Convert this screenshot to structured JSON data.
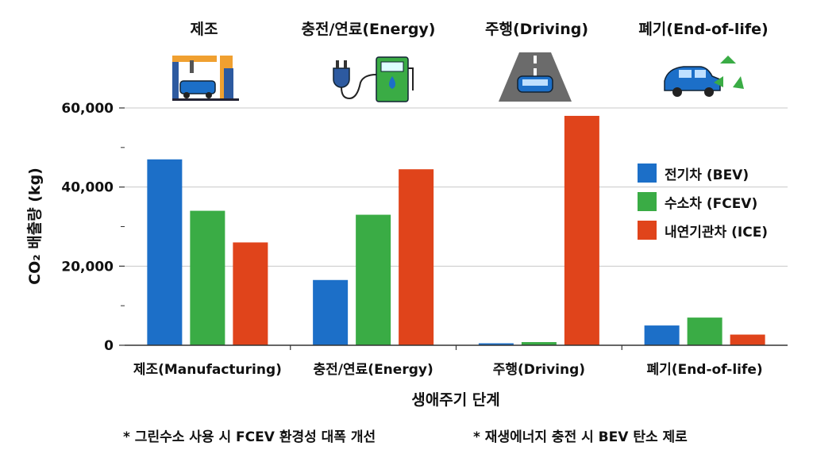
{
  "stage_titles": [
    "제조",
    "충전/연료(Energy)",
    "주행(Driving)",
    "폐기(End-of-life)"
  ],
  "icons": [
    "factory-robot-car-icon",
    "plug-fuel-pump-icon",
    "road-car-icon",
    "car-recycle-icon"
  ],
  "notes": [
    "* 그린수소 사용 시 FCEV 환경성 대폭 개선",
    "* 재생에너지 충전 시 BEV 탄소 제로"
  ],
  "colors": {
    "bev": "#1c6fc8",
    "fcev": "#3aac45",
    "ice": "#e0441b"
  },
  "chart_data": {
    "type": "bar",
    "xlabel": "생애주기 단계",
    "ylabel": "CO₂ 배출량 (kg)",
    "categories": [
      "제조(Manufacturing)",
      "충전/연료(Energy)",
      "주행(Driving)",
      "폐기(End-of-life)"
    ],
    "series": [
      {
        "name": "전기차 (BEV)",
        "values": [
          47000,
          16500,
          500,
          5000
        ]
      },
      {
        "name": "수소차 (FCEV)",
        "values": [
          34000,
          33000,
          800,
          7000
        ]
      },
      {
        "name": "내연기관차 (ICE)",
        "values": [
          26000,
          44500,
          58000,
          2700
        ]
      }
    ],
    "ylim": [
      0,
      60000
    ],
    "yticks": [
      "0",
      "20,000",
      "40,000",
      "60,000"
    ],
    "grid": true,
    "legend_position": "right"
  }
}
